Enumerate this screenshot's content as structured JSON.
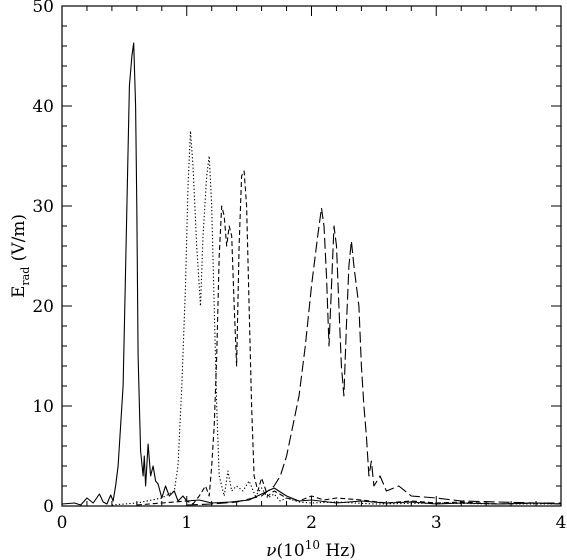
{
  "chart_data": {
    "type": "line",
    "xlabel_symbol": "ν",
    "xlabel_rest": "(10",
    "xlabel_exp": "10",
    "xlabel_unit": " Hz)",
    "ylabel_main": "E",
    "ylabel_sub": "rad",
    "ylabel_unit": " (V/m)",
    "xlim": [
      0,
      4
    ],
    "ylim": [
      0,
      50
    ],
    "xticks": [
      "0",
      "1",
      "2",
      "3",
      "4"
    ],
    "yticks": [
      "0",
      "10",
      "20",
      "30",
      "40",
      "50"
    ],
    "grid": false,
    "legend": "none",
    "series": [
      {
        "style": "solid",
        "points": [
          [
            0.0,
            0.2
          ],
          [
            0.1,
            0.3
          ],
          [
            0.15,
            0.1
          ],
          [
            0.2,
            0.8
          ],
          [
            0.25,
            0.3
          ],
          [
            0.3,
            1.2
          ],
          [
            0.33,
            0.4
          ],
          [
            0.36,
            0.2
          ],
          [
            0.39,
            1.1
          ],
          [
            0.41,
            0.5
          ],
          [
            0.43,
            2.0
          ],
          [
            0.45,
            4.0
          ],
          [
            0.47,
            8.0
          ],
          [
            0.49,
            12.0
          ],
          [
            0.5,
            18.0
          ],
          [
            0.52,
            30.0
          ],
          [
            0.54,
            42.0
          ],
          [
            0.56,
            45.0
          ],
          [
            0.575,
            46.3
          ],
          [
            0.59,
            40.0
          ],
          [
            0.6,
            30.0
          ],
          [
            0.61,
            15.0
          ],
          [
            0.63,
            5.5
          ],
          [
            0.65,
            3.0
          ],
          [
            0.66,
            5.0
          ],
          [
            0.67,
            2.0
          ],
          [
            0.69,
            6.2
          ],
          [
            0.71,
            3.0
          ],
          [
            0.73,
            4.0
          ],
          [
            0.75,
            2.5
          ],
          [
            0.77,
            2.2
          ],
          [
            0.8,
            0.8
          ],
          [
            0.83,
            2.0
          ],
          [
            0.86,
            1.0
          ],
          [
            0.9,
            1.5
          ],
          [
            0.93,
            0.5
          ],
          [
            0.97,
            1.0
          ],
          [
            1.0,
            0.5
          ],
          [
            1.1,
            0.6
          ],
          [
            1.2,
            0.3
          ],
          [
            1.35,
            0.4
          ],
          [
            1.5,
            0.6
          ],
          [
            1.6,
            1.2
          ],
          [
            1.7,
            1.8
          ],
          [
            1.8,
            1.0
          ],
          [
            1.9,
            0.5
          ],
          [
            2.0,
            0.6
          ],
          [
            2.2,
            0.3
          ],
          [
            2.4,
            0.5
          ],
          [
            2.6,
            0.3
          ],
          [
            2.8,
            0.4
          ],
          [
            3.0,
            0.2
          ],
          [
            3.2,
            0.3
          ],
          [
            3.5,
            0.2
          ],
          [
            3.8,
            0.3
          ],
          [
            4.0,
            0.2
          ]
        ]
      },
      {
        "style": "dotted",
        "points": [
          [
            0.4,
            0.1
          ],
          [
            0.6,
            0.3
          ],
          [
            0.8,
            0.8
          ],
          [
            0.9,
            1.5
          ],
          [
            0.93,
            4.0
          ],
          [
            0.96,
            12.0
          ],
          [
            0.99,
            22.0
          ],
          [
            1.01,
            32.0
          ],
          [
            1.03,
            37.5
          ],
          [
            1.05,
            34.0
          ],
          [
            1.08,
            26.0
          ],
          [
            1.11,
            20.0
          ],
          [
            1.13,
            27.0
          ],
          [
            1.16,
            33.0
          ],
          [
            1.18,
            35.0
          ],
          [
            1.2,
            30.0
          ],
          [
            1.22,
            20.0
          ],
          [
            1.24,
            10.0
          ],
          [
            1.26,
            3.0
          ],
          [
            1.3,
            1.0
          ],
          [
            1.33,
            3.5
          ],
          [
            1.36,
            1.5
          ],
          [
            1.4,
            2.0
          ],
          [
            1.45,
            1.5
          ],
          [
            1.5,
            2.5
          ],
          [
            1.55,
            1.0
          ],
          [
            1.6,
            1.8
          ],
          [
            1.65,
            0.8
          ],
          [
            1.7,
            1.2
          ],
          [
            1.75,
            0.5
          ],
          [
            1.8,
            0.8
          ],
          [
            1.9,
            0.4
          ],
          [
            2.0,
            0.3
          ],
          [
            2.2,
            0.4
          ],
          [
            2.5,
            0.2
          ],
          [
            3.0,
            0.3
          ],
          [
            3.5,
            0.2
          ],
          [
            4.0,
            0.2
          ]
        ]
      },
      {
        "style": "dashed",
        "points": [
          [
            0.6,
            0.1
          ],
          [
            0.8,
            0.3
          ],
          [
            1.0,
            0.5
          ],
          [
            1.05,
            0.2
          ],
          [
            1.1,
            1.0
          ],
          [
            1.15,
            2.0
          ],
          [
            1.18,
            1.0
          ],
          [
            1.2,
            4.0
          ],
          [
            1.22,
            8.0
          ],
          [
            1.24,
            15.0
          ],
          [
            1.26,
            25.0
          ],
          [
            1.28,
            30.0
          ],
          [
            1.3,
            29.0
          ],
          [
            1.32,
            26.0
          ],
          [
            1.34,
            28.0
          ],
          [
            1.36,
            27.0
          ],
          [
            1.38,
            20.0
          ],
          [
            1.4,
            14.0
          ],
          [
            1.42,
            26.0
          ],
          [
            1.44,
            33.0
          ],
          [
            1.46,
            33.5
          ],
          [
            1.48,
            30.0
          ],
          [
            1.5,
            20.0
          ],
          [
            1.52,
            10.0
          ],
          [
            1.54,
            3.0
          ],
          [
            1.57,
            1.5
          ],
          [
            1.6,
            2.8
          ],
          [
            1.65,
            1.0
          ],
          [
            1.7,
            1.5
          ],
          [
            1.8,
            0.8
          ],
          [
            1.9,
            0.5
          ],
          [
            2.0,
            1.0
          ],
          [
            2.1,
            0.6
          ],
          [
            2.2,
            0.8
          ],
          [
            2.4,
            0.6
          ],
          [
            2.6,
            0.3
          ],
          [
            2.8,
            0.5
          ],
          [
            3.0,
            0.3
          ],
          [
            3.2,
            0.4
          ],
          [
            3.5,
            0.2
          ],
          [
            3.8,
            0.3
          ],
          [
            4.0,
            0.2
          ]
        ]
      },
      {
        "style": "longdashed",
        "points": [
          [
            1.0,
            0.1
          ],
          [
            1.2,
            0.2
          ],
          [
            1.4,
            0.4
          ],
          [
            1.6,
            1.0
          ],
          [
            1.7,
            2.0
          ],
          [
            1.75,
            3.0
          ],
          [
            1.8,
            5.0
          ],
          [
            1.85,
            8.0
          ],
          [
            1.9,
            11.0
          ],
          [
            1.95,
            16.0
          ],
          [
            2.0,
            22.0
          ],
          [
            2.05,
            27.0
          ],
          [
            2.08,
            29.8
          ],
          [
            2.1,
            28.0
          ],
          [
            2.12,
            23.0
          ],
          [
            2.14,
            16.0
          ],
          [
            2.16,
            22.0
          ],
          [
            2.18,
            28.0
          ],
          [
            2.2,
            26.0
          ],
          [
            2.22,
            20.0
          ],
          [
            2.24,
            14.0
          ],
          [
            2.26,
            11.0
          ],
          [
            2.28,
            18.0
          ],
          [
            2.3,
            24.0
          ],
          [
            2.32,
            26.5
          ],
          [
            2.34,
            24.0
          ],
          [
            2.36,
            22.0
          ],
          [
            2.38,
            20.0
          ],
          [
            2.4,
            14.0
          ],
          [
            2.42,
            10.0
          ],
          [
            2.44,
            7.0
          ],
          [
            2.46,
            3.0
          ],
          [
            2.48,
            4.5
          ],
          [
            2.5,
            2.0
          ],
          [
            2.55,
            3.0
          ],
          [
            2.6,
            1.5
          ],
          [
            2.7,
            2.0
          ],
          [
            2.8,
            1.0
          ],
          [
            3.0,
            0.8
          ],
          [
            3.2,
            0.5
          ],
          [
            3.5,
            0.4
          ],
          [
            3.8,
            0.3
          ],
          [
            4.0,
            0.3
          ]
        ]
      }
    ]
  }
}
